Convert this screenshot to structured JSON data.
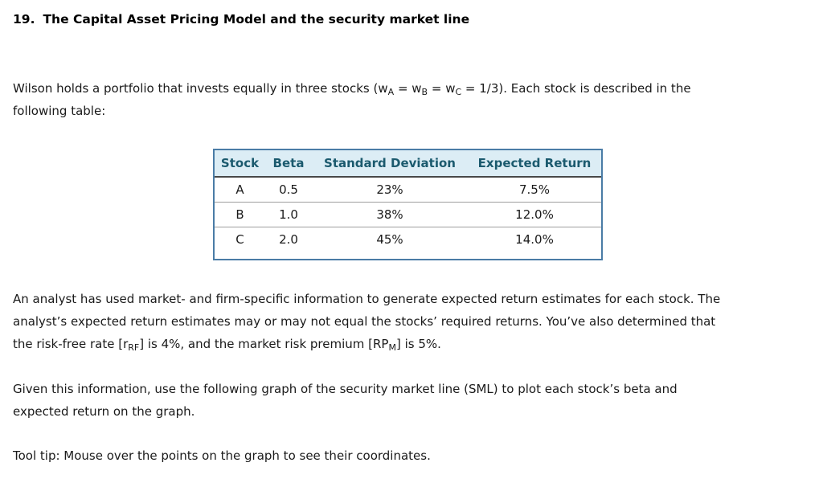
{
  "title": {
    "number": "19.",
    "text": "The Capital Asset Pricing Model and the security market line"
  },
  "intro": {
    "line1": {
      "s1": "Wilson holds a portfolio that invests equally in three stocks (w",
      "sub1": "A",
      "s2": " = w",
      "sub2": "B",
      "s3": " = w",
      "sub3": "C",
      "s4": " = 1/3). Each stock is described in the"
    },
    "line2": "following table:"
  },
  "stocks_table": {
    "headers": [
      "Stock",
      "Beta",
      "Standard Deviation",
      "Expected Return"
    ],
    "rows": [
      [
        "A",
        "0.5",
        "23%",
        "7.5%"
      ],
      [
        "B",
        "1.0",
        "38%",
        "12.0%"
      ],
      [
        "C",
        "2.0",
        "45%",
        "14.0%"
      ]
    ]
  },
  "analyst": {
    "line1": "An analyst has used market- and firm-specific information to generate expected return estimates for each stock. The",
    "line2": "analyst’s expected return estimates may or may not equal the stocks’ required returns. You’ve also determined that",
    "line3": {
      "s1": "the risk-free rate [r",
      "sub1": "RF",
      "s2": "] is 4%, and the market risk premium [RP",
      "sub2": "M",
      "s3": "] is 5%."
    }
  },
  "instruction": {
    "line1": "Given this information, use the following graph of the security market line (SML) to plot each stock’s beta and",
    "line2": "expected return on the graph."
  },
  "tooltip": "Tool tip: Mouse over the points on the graph to see their coordinates.",
  "colors": {
    "table_border": "#4A7CA6",
    "table_header_bg": "#DCEDF5",
    "table_header_text": "#1B5A6E",
    "header_underline": "#484848",
    "row_divider": "#9E9E9E",
    "body_text": "#1A1A1A"
  }
}
